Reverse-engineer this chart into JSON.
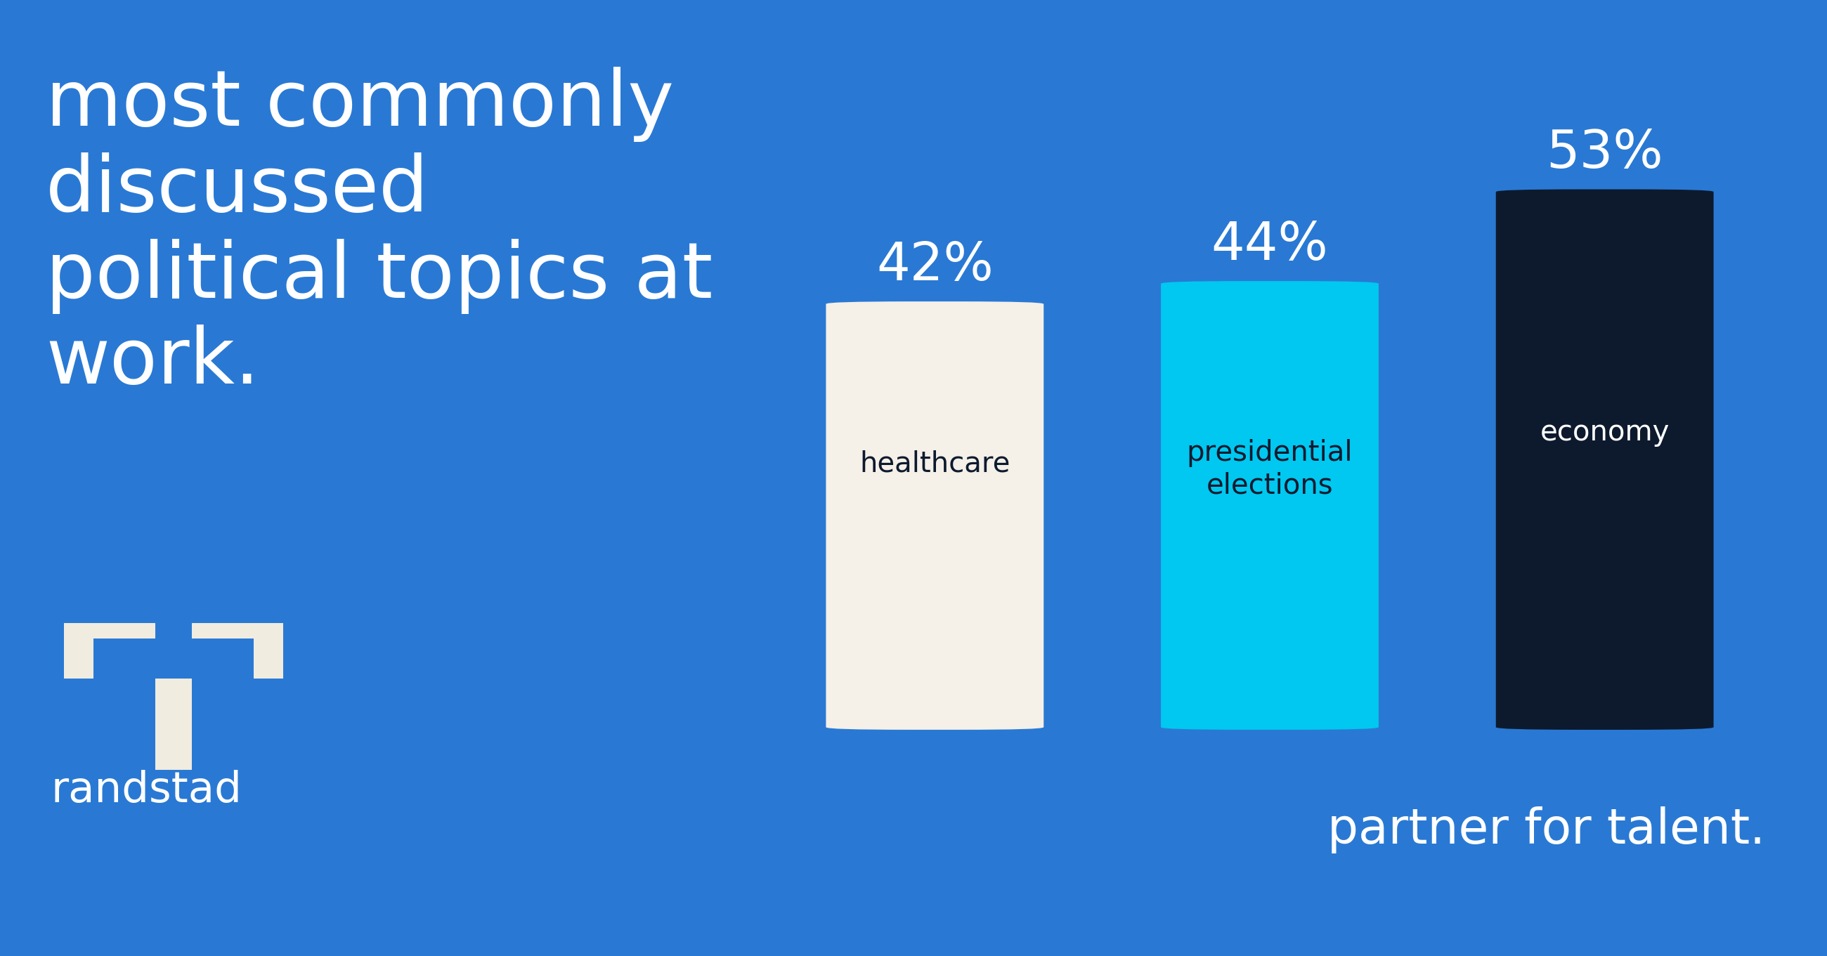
{
  "background_color": "#2979d4",
  "title_lines": [
    "most commonly",
    "discussed",
    "political topics at",
    "work."
  ],
  "title_color": "#ffffff",
  "title_fontsize": 80,
  "categories": [
    "healthcare",
    "presidential\nelections",
    "economy"
  ],
  "values": [
    42,
    44,
    53
  ],
  "bar_colors": [
    "#f5f0e8",
    "#00c8f0",
    "#0d1a2e"
  ],
  "pct_labels": [
    "42%",
    "44%",
    "53%"
  ],
  "pct_color_above": "#ffffff",
  "bar_label_colors": [
    "#0d1a2e",
    "#0d1a2e",
    "#ffffff"
  ],
  "partner_text": "partner for talent.",
  "partner_color": "#ffffff",
  "partner_fontsize": 50,
  "randstad_text": "randstad",
  "randstad_color": "#ffffff",
  "randstad_fontsize": 44,
  "logo_color": "#f0ece0",
  "ylim": [
    0,
    65
  ],
  "bar_width": 0.65
}
